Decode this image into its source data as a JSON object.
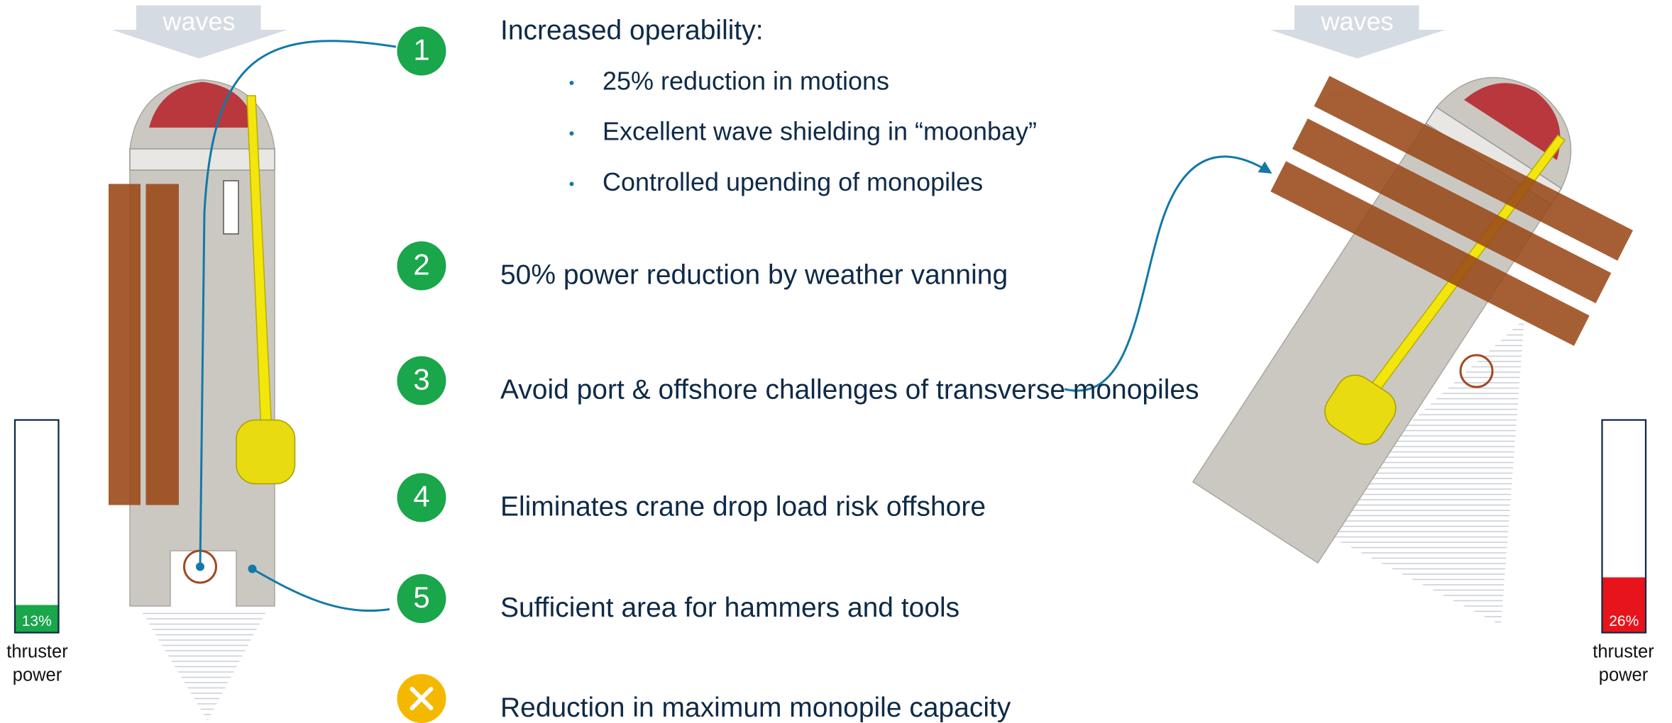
{
  "left_panel": {
    "waves": "waves",
    "gauge": {
      "value": 13,
      "label": "13%",
      "color": "#1aa64a"
    },
    "caption": [
      "thruster",
      "power"
    ]
  },
  "right_panel": {
    "waves": "waves",
    "gauge": {
      "value": 26,
      "label": "26%",
      "color": "#e8141b"
    },
    "caption": [
      "thruster",
      "power"
    ]
  },
  "items": [
    {
      "number": "1",
      "text": "Increased operability:",
      "bullets": [
        "25% reduction in motions",
        "Excellent wave shielding in “moonbay”",
        "Controlled upending of monopiles"
      ]
    },
    {
      "number": "2",
      "text": "50% power reduction by weather vanning"
    },
    {
      "number": "3",
      "text": "Avoid port & offshore challenges of transverse monopiles"
    },
    {
      "number": "4",
      "text": "Eliminates crane drop load risk offshore"
    },
    {
      "number": "5",
      "text": "Sufficient area for hammers and tools"
    },
    {
      "text": "Reduction in maximum monopile capacity"
    }
  ]
}
